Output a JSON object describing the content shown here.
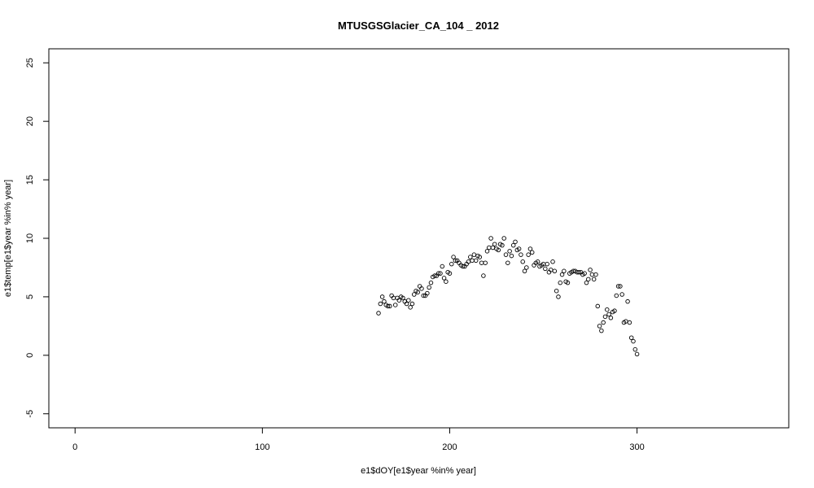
{
  "chart_data": {
    "type": "scatter",
    "title": "MTUSGSGlacier_CA_104 _ 2012",
    "xlabel": "e1$dOY[e1$year %in% year]",
    "ylabel": "e1$temp[e1$year %in% year]",
    "xlim": [
      -14,
      381
    ],
    "ylim": [
      -6.2,
      26.2
    ],
    "xticks": [
      0,
      100,
      200,
      300
    ],
    "yticks": [
      -5,
      0,
      5,
      10,
      15,
      20,
      25
    ],
    "grid": false,
    "legend": "none",
    "points": [
      [
        162,
        3.6
      ],
      [
        163,
        4.4
      ],
      [
        164,
        5.0
      ],
      [
        165,
        4.6
      ],
      [
        166,
        4.3
      ],
      [
        167,
        4.2
      ],
      [
        168,
        4.2
      ],
      [
        169,
        5.1
      ],
      [
        170,
        4.9
      ],
      [
        171,
        4.3
      ],
      [
        172,
        4.9
      ],
      [
        173,
        4.7
      ],
      [
        174,
        5.0
      ],
      [
        175,
        4.9
      ],
      [
        176,
        4.6
      ],
      [
        177,
        4.4
      ],
      [
        178,
        4.7
      ],
      [
        179,
        4.1
      ],
      [
        180,
        4.4
      ],
      [
        181,
        5.2
      ],
      [
        182,
        5.5
      ],
      [
        183,
        5.4
      ],
      [
        184,
        5.9
      ],
      [
        185,
        5.7
      ],
      [
        186,
        5.1
      ],
      [
        187,
        5.1
      ],
      [
        188,
        5.3
      ],
      [
        189,
        5.8
      ],
      [
        190,
        6.2
      ],
      [
        191,
        6.7
      ],
      [
        192,
        6.8
      ],
      [
        193,
        6.8
      ],
      [
        194,
        7.0
      ],
      [
        195,
        7.0
      ],
      [
        196,
        7.6
      ],
      [
        197,
        6.6
      ],
      [
        198,
        6.3
      ],
      [
        199,
        7.1
      ],
      [
        200,
        7.0
      ],
      [
        201,
        7.8
      ],
      [
        202,
        8.4
      ],
      [
        203,
        8.1
      ],
      [
        204,
        8.1
      ],
      [
        205,
        7.9
      ],
      [
        206,
        7.7
      ],
      [
        207,
        7.6
      ],
      [
        208,
        7.6
      ],
      [
        209,
        7.8
      ],
      [
        210,
        8.0
      ],
      [
        211,
        8.4
      ],
      [
        212,
        8.1
      ],
      [
        213,
        8.6
      ],
      [
        214,
        8.1
      ],
      [
        215,
        8.5
      ],
      [
        216,
        8.4
      ],
      [
        217,
        7.9
      ],
      [
        218,
        6.8
      ],
      [
        219,
        7.9
      ],
      [
        220,
        8.9
      ],
      [
        221,
        9.2
      ],
      [
        222,
        10.0
      ],
      [
        223,
        9.2
      ],
      [
        224,
        9.5
      ],
      [
        225,
        9.1
      ],
      [
        226,
        9.0
      ],
      [
        227,
        9.5
      ],
      [
        228,
        9.4
      ],
      [
        229,
        10.0
      ],
      [
        230,
        8.6
      ],
      [
        231,
        7.9
      ],
      [
        232,
        8.9
      ],
      [
        233,
        8.5
      ],
      [
        234,
        9.4
      ],
      [
        235,
        9.7
      ],
      [
        236,
        9.0
      ],
      [
        237,
        9.1
      ],
      [
        238,
        8.6
      ],
      [
        239,
        8.0
      ],
      [
        240,
        7.2
      ],
      [
        241,
        7.5
      ],
      [
        242,
        8.6
      ],
      [
        243,
        9.1
      ],
      [
        244,
        8.8
      ],
      [
        245,
        7.7
      ],
      [
        246,
        7.9
      ],
      [
        247,
        8.0
      ],
      [
        248,
        7.6
      ],
      [
        249,
        7.7
      ],
      [
        250,
        7.8
      ],
      [
        251,
        7.4
      ],
      [
        252,
        7.8
      ],
      [
        253,
        7.1
      ],
      [
        254,
        7.3
      ],
      [
        255,
        8.0
      ],
      [
        256,
        7.2
      ],
      [
        257,
        5.5
      ],
      [
        258,
        5.0
      ],
      [
        259,
        6.2
      ],
      [
        260,
        6.9
      ],
      [
        261,
        7.2
      ],
      [
        262,
        6.3
      ],
      [
        263,
        6.2
      ],
      [
        264,
        7.0
      ],
      [
        265,
        7.1
      ],
      [
        266,
        7.2
      ],
      [
        267,
        7.2
      ],
      [
        268,
        7.1
      ],
      [
        269,
        7.1
      ],
      [
        270,
        7.1
      ],
      [
        271,
        6.9
      ],
      [
        272,
        7.0
      ],
      [
        273,
        6.2
      ],
      [
        274,
        6.5
      ],
      [
        275,
        7.3
      ],
      [
        276,
        6.9
      ],
      [
        277,
        6.5
      ],
      [
        278,
        6.9
      ],
      [
        279,
        4.2
      ],
      [
        280,
        2.5
      ],
      [
        281,
        2.1
      ],
      [
        282,
        2.8
      ],
      [
        283,
        3.3
      ],
      [
        284,
        3.9
      ],
      [
        285,
        3.5
      ],
      [
        286,
        3.2
      ],
      [
        287,
        3.7
      ],
      [
        288,
        3.8
      ],
      [
        289,
        5.1
      ],
      [
        290,
        5.9
      ],
      [
        291,
        5.9
      ],
      [
        292,
        5.2
      ],
      [
        293,
        2.8
      ],
      [
        294,
        2.9
      ],
      [
        295,
        4.6
      ],
      [
        296,
        2.8
      ],
      [
        297,
        1.5
      ],
      [
        298,
        1.2
      ],
      [
        299,
        0.5
      ],
      [
        300,
        0.1
      ]
    ]
  }
}
